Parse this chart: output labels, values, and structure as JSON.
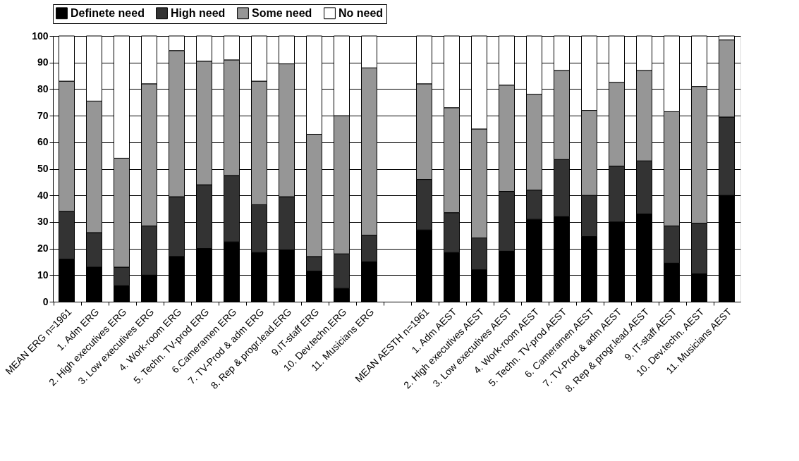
{
  "chart_data": {
    "type": "bar",
    "stacked": true,
    "categories": [
      "MEAN ERG n=1961",
      "1. Adm ERG",
      "2. High executives ERG",
      "3. Low executives ERG",
      "4. Work-room ERG",
      "5. Techn. TV-prod ERG",
      "6.Cameramen ERG",
      "7. TV-Prod & adm ERG",
      "8. Rep & progr.lead.ERG",
      "9.IT-staff ERG",
      "10. Dev.techn.ERG",
      "11. Musicians ERG",
      null,
      "MEAN AESTH n=1961",
      "1. Adm AEST",
      "2. High executives AEST",
      "3. Low executives AEST",
      "4. Work-room AEST",
      "5. Techn. TV-prod AEST",
      "6. Cameramen AEST",
      "7. TV-Prod & adm AEST",
      "8. Rep & progr.lead.AEST",
      "9. IT-staff AEST",
      "10. Dev.techn. AEST",
      "11. Musicians AEST"
    ],
    "series": [
      {
        "name": "Definete need",
        "color": "#000000",
        "values": [
          16,
          13,
          6,
          10,
          17,
          20,
          22.5,
          18.5,
          19.5,
          11.5,
          5,
          15,
          null,
          27,
          18.5,
          12,
          19,
          31,
          32,
          24.5,
          30,
          33,
          14.5,
          10.5,
          40
        ]
      },
      {
        "name": "High need",
        "color": "#333333",
        "values": [
          18,
          13,
          7,
          18.5,
          22.5,
          24,
          25,
          18,
          20,
          5.5,
          13,
          10,
          null,
          19,
          15,
          12,
          22.5,
          11,
          21.5,
          15.5,
          21,
          20,
          14,
          19,
          29.5
        ]
      },
      {
        "name": "Some need",
        "color": "#969696",
        "values": [
          49,
          49.5,
          41,
          53.5,
          55,
          46.5,
          43.5,
          46.5,
          50,
          46,
          52,
          63,
          null,
          36,
          39.5,
          41,
          40,
          36,
          33.5,
          32,
          31.5,
          34,
          43,
          51.5,
          29
        ]
      },
      {
        "name": "No need",
        "color": "#ffffff",
        "values": [
          17,
          24.5,
          46,
          18,
          5.5,
          9.5,
          9,
          17,
          10.5,
          37,
          30,
          12,
          null,
          18,
          27,
          35,
          18.5,
          22,
          13,
          28,
          17.5,
          13,
          28.5,
          19,
          1.5
        ]
      }
    ],
    "ylim": [
      0,
      100
    ],
    "yticks": [
      0,
      10,
      20,
      30,
      40,
      50,
      60,
      70,
      80,
      90,
      100
    ],
    "grid": "y",
    "legend": "top"
  }
}
